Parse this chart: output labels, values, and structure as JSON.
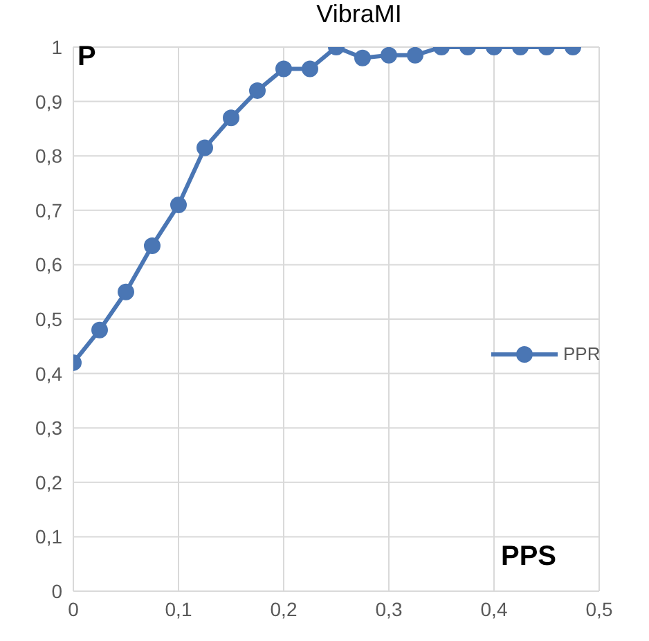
{
  "chart_data": {
    "type": "line",
    "title": "VibraMI",
    "xlabel": "PPS",
    "ylabel": "P",
    "x": [
      0,
      0.025,
      0.05,
      0.075,
      0.1,
      0.125,
      0.15,
      0.175,
      0.2,
      0.225,
      0.25,
      0.275,
      0.3,
      0.325,
      0.35,
      0.375,
      0.4,
      0.425,
      0.45,
      0.475
    ],
    "series": [
      {
        "name": "PPR",
        "color": "#4a76b4",
        "values": [
          0.42,
          0.48,
          0.55,
          0.635,
          0.71,
          0.815,
          0.87,
          0.92,
          0.96,
          0.96,
          1,
          0.98,
          0.985,
          0.985,
          1,
          1,
          1,
          1,
          1,
          1
        ]
      }
    ],
    "xlim": [
      0,
      0.5
    ],
    "xticks": [
      0,
      {
        "value": 0.1,
        "label": "0,1"
      },
      {
        "value": 0.2,
        "label": "0,2"
      },
      {
        "value": 0.3,
        "label": "0,3"
      },
      {
        "value": 0.4,
        "label": "0,4"
      },
      {
        "value": 0.5,
        "label": "0,5"
      }
    ],
    "ylim": [
      0,
      1
    ],
    "yticks": [
      0,
      {
        "value": 0.1,
        "label": "0,1"
      },
      {
        "value": 0.2,
        "label": "0,2"
      },
      {
        "value": 0.3,
        "label": "0,3"
      },
      {
        "value": 0.4,
        "label": "0,4"
      },
      {
        "value": 0.5,
        "label": "0,5"
      },
      {
        "value": 0.6,
        "label": "0,6"
      },
      {
        "value": 0.7,
        "label": "0,7"
      },
      {
        "value": 0.8,
        "label": "0,8"
      },
      {
        "value": 0.9,
        "label": "0,9"
      },
      1
    ],
    "grid": true,
    "legend": "right",
    "marker": "circle",
    "line_style": "solid"
  }
}
